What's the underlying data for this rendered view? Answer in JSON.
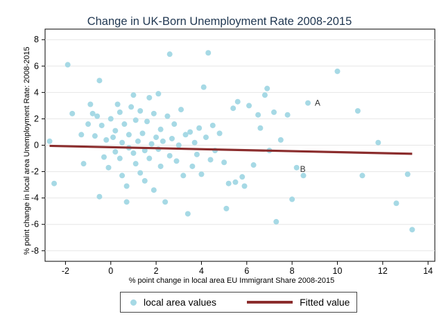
{
  "chart_data": {
    "type": "scatter",
    "title": "Change in UK-Born Unemployment Rate 2008-2015",
    "xlabel": "% point change in local area EU Immigrant Share 2008-2015",
    "ylabel": "% point change in local area Unemployment Rate: 2008-2015",
    "xlim": [
      -2.9,
      14.3
    ],
    "ylim": [
      -8.8,
      8.8
    ],
    "x_ticks": [
      -2,
      0,
      2,
      4,
      6,
      8,
      10,
      12,
      14
    ],
    "y_ticks": [
      8,
      6,
      4,
      2,
      0,
      -2,
      -4,
      -6,
      -8
    ],
    "grid": "horizontal",
    "legend_position": "bottom",
    "series": [
      {
        "name": "local area values",
        "kind": "scatter",
        "color": "#a6d9e5",
        "points": [
          [
            -2.7,
            0.3
          ],
          [
            -2.5,
            -2.9
          ],
          [
            -1.9,
            6.1
          ],
          [
            -1.7,
            2.4
          ],
          [
            -1.3,
            0.8
          ],
          [
            -1.2,
            -1.4
          ],
          [
            -1.0,
            1.6
          ],
          [
            -0.9,
            3.1
          ],
          [
            -0.8,
            2.4
          ],
          [
            -0.7,
            0.7
          ],
          [
            -0.6,
            2.2
          ],
          [
            -0.5,
            4.9
          ],
          [
            -0.5,
            -3.9
          ],
          [
            -0.4,
            1.5
          ],
          [
            -0.3,
            -0.9
          ],
          [
            -0.2,
            0.4
          ],
          [
            -0.1,
            -1.7
          ],
          [
            0.0,
            2.0
          ],
          [
            0.1,
            0.6
          ],
          [
            0.2,
            -0.5
          ],
          [
            0.2,
            1.1
          ],
          [
            0.3,
            3.1
          ],
          [
            0.4,
            2.5
          ],
          [
            0.4,
            -1.0
          ],
          [
            0.5,
            0.2
          ],
          [
            0.5,
            -2.3
          ],
          [
            0.6,
            1.6
          ],
          [
            0.7,
            -3.1
          ],
          [
            0.7,
            -4.3
          ],
          [
            0.8,
            0.8
          ],
          [
            0.8,
            -0.2
          ],
          [
            0.9,
            2.9
          ],
          [
            1.0,
            3.8
          ],
          [
            1.0,
            -0.6
          ],
          [
            1.1,
            -1.4
          ],
          [
            1.1,
            1.9
          ],
          [
            1.2,
            0.3
          ],
          [
            1.3,
            -2.1
          ],
          [
            1.3,
            2.6
          ],
          [
            1.4,
            0.9
          ],
          [
            1.5,
            -0.4
          ],
          [
            1.5,
            -2.7
          ],
          [
            1.6,
            1.8
          ],
          [
            1.7,
            3.6
          ],
          [
            1.7,
            -1.0
          ],
          [
            1.8,
            0.1
          ],
          [
            1.9,
            2.4
          ],
          [
            1.9,
            -3.4
          ],
          [
            2.0,
            0.6
          ],
          [
            2.1,
            -0.3
          ],
          [
            2.1,
            3.9
          ],
          [
            2.2,
            1.2
          ],
          [
            2.2,
            -1.6
          ],
          [
            2.3,
            0.3
          ],
          [
            2.4,
            -4.3
          ],
          [
            2.5,
            2.2
          ],
          [
            2.6,
            6.9
          ],
          [
            2.6,
            -0.8
          ],
          [
            2.7,
            0.5
          ],
          [
            2.8,
            1.6
          ],
          [
            2.9,
            -1.2
          ],
          [
            3.0,
            0.0
          ],
          [
            3.1,
            2.7
          ],
          [
            3.2,
            -2.3
          ],
          [
            3.3,
            0.8
          ],
          [
            3.4,
            -5.2
          ],
          [
            3.5,
            1.0
          ],
          [
            3.6,
            -1.6
          ],
          [
            3.7,
            0.2
          ],
          [
            3.8,
            -0.7
          ],
          [
            3.9,
            1.3
          ],
          [
            4.0,
            -2.2
          ],
          [
            4.1,
            4.4
          ],
          [
            4.2,
            0.6
          ],
          [
            4.3,
            7.0
          ],
          [
            4.4,
            -1.1
          ],
          [
            4.5,
            1.5
          ],
          [
            4.6,
            -0.4
          ],
          [
            4.8,
            0.9
          ],
          [
            5.0,
            -1.3
          ],
          [
            5.1,
            -4.8
          ],
          [
            5.2,
            -2.9
          ],
          [
            5.4,
            2.8
          ],
          [
            5.5,
            -2.8
          ],
          [
            5.6,
            3.3
          ],
          [
            5.8,
            -2.4
          ],
          [
            5.9,
            -3.1
          ],
          [
            6.1,
            3.0
          ],
          [
            6.3,
            -1.5
          ],
          [
            6.5,
            2.3
          ],
          [
            6.6,
            1.3
          ],
          [
            6.8,
            3.8
          ],
          [
            6.9,
            4.3
          ],
          [
            7.0,
            -0.4
          ],
          [
            7.2,
            2.5
          ],
          [
            7.3,
            -5.8
          ],
          [
            7.5,
            0.4
          ],
          [
            7.8,
            2.3
          ],
          [
            8.0,
            -4.1
          ],
          [
            8.2,
            -1.7
          ],
          [
            8.5,
            -2.3
          ],
          [
            8.7,
            3.2
          ],
          [
            10.0,
            5.6
          ],
          [
            10.9,
            2.6
          ],
          [
            11.1,
            -2.3
          ],
          [
            11.8,
            0.2
          ],
          [
            12.6,
            -4.4
          ],
          [
            13.1,
            -2.2
          ],
          [
            13.3,
            -6.4
          ]
        ]
      },
      {
        "name": "Fitted value",
        "kind": "line",
        "color": "#8b2d2d",
        "points": [
          [
            -2.7,
            -0.05
          ],
          [
            13.3,
            -0.65
          ]
        ]
      }
    ],
    "annotations": [
      {
        "text": "A",
        "x": 9.0,
        "y": 3.2
      },
      {
        "text": "B",
        "x": 8.35,
        "y": -1.8
      }
    ]
  },
  "legend": {
    "item1_label": "local area values",
    "item2_label": "Fitted value"
  }
}
